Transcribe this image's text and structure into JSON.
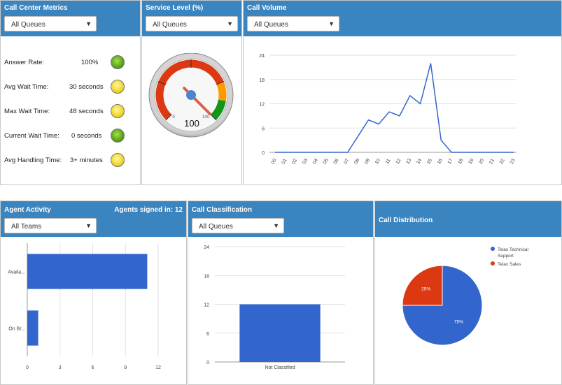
{
  "metrics_panel": {
    "title": "Call Center Metrics",
    "queue_select": "All Queues",
    "rows": [
      {
        "label": "Answer Rate:",
        "value": "100%",
        "status": "green"
      },
      {
        "label": "Avg Wait Time:",
        "value": "30 seconds",
        "status": "yellow"
      },
      {
        "label": "Max Wait Time:",
        "value": "48 seconds",
        "status": "yellow"
      },
      {
        "label": "Current Wait Time:",
        "value": "0 seconds",
        "status": "green"
      },
      {
        "label": "Avg Handling Time:",
        "value": "3+ minutes",
        "status": "yellow"
      }
    ]
  },
  "service_level": {
    "title": "Service Level (%)",
    "queue_select": "All Queues",
    "gauge": {
      "value": 100,
      "min": 0,
      "max": 100,
      "min_label": "0",
      "max_label": "100",
      "readout": "100"
    }
  },
  "call_volume": {
    "title": "Call Volume",
    "queue_select": "All Queues"
  },
  "agent_activity": {
    "title": "Agent Activity",
    "agents_signed_in": "Agents signed in: 12",
    "team_select": "All Teams"
  },
  "call_classification": {
    "title": "Call Classification",
    "queue_select": "All Queues"
  },
  "call_distribution": {
    "title": "Call Distribution"
  },
  "colors": {
    "header": "#3a84c0",
    "line": "#3366cc",
    "bar": "#3366cc",
    "pie_support": "#3366cc",
    "pie_sales": "#dc3912",
    "gauge_red": "#dc3912",
    "gauge_orange": "#ff9900",
    "gauge_green": "#109618"
  },
  "chart_data": [
    {
      "id": "call-volume",
      "type": "line",
      "x": [
        "00",
        "01",
        "02",
        "03",
        "04",
        "05",
        "06",
        "07",
        "08",
        "09",
        "10",
        "11",
        "12",
        "13",
        "14",
        "15",
        "16",
        "17",
        "18",
        "19",
        "20",
        "21",
        "22",
        "23"
      ],
      "values": [
        0,
        0,
        0,
        0,
        0,
        0,
        0,
        0,
        4,
        8,
        7,
        10,
        9,
        14,
        12,
        22,
        3,
        0,
        0,
        0,
        0,
        0,
        0,
        0
      ],
      "yticks": [
        0,
        6,
        12,
        18,
        24
      ],
      "ylim": [
        0,
        24
      ],
      "grid": true
    },
    {
      "id": "agent-activity",
      "type": "bar",
      "orientation": "horizontal",
      "categories": [
        "Availa...",
        "On Br..."
      ],
      "values": [
        11,
        1
      ],
      "xticks": [
        0,
        3,
        6,
        9,
        12
      ],
      "xlim": [
        0,
        12
      ],
      "grid": true
    },
    {
      "id": "call-classification",
      "type": "bar",
      "categories": [
        "Not Classified"
      ],
      "values": [
        12
      ],
      "yticks": [
        0,
        6,
        12,
        18,
        24
      ],
      "ylim": [
        0,
        24
      ],
      "grid": true
    },
    {
      "id": "call-distribution",
      "type": "pie",
      "series": [
        {
          "name": "Telax Technical Support",
          "value": 75,
          "label": "75%"
        },
        {
          "name": "Telax Sales",
          "value": 25,
          "label": "25%"
        }
      ],
      "legend": "right"
    }
  ]
}
